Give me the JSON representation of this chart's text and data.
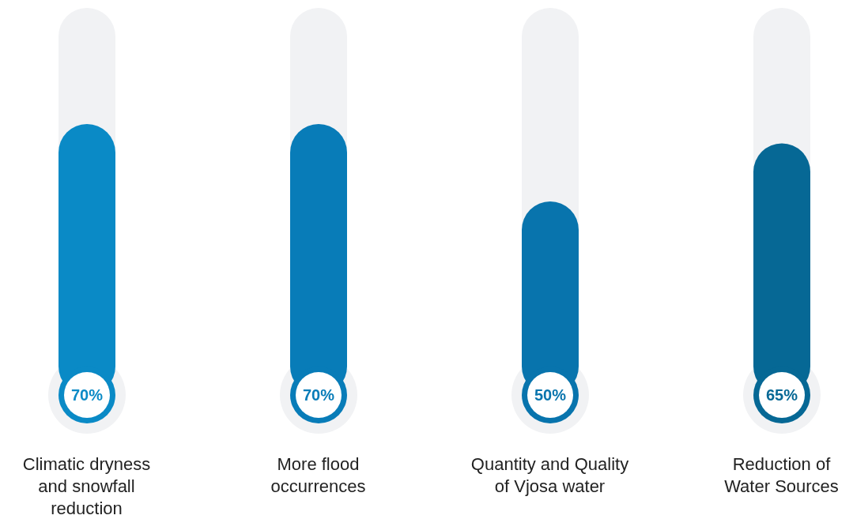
{
  "chart_data": {
    "type": "bar",
    "categories": [
      "Climatic dryness and snowfall reduction",
      "More flood occurrences",
      "Quantity and Quality of Vjosa water",
      "Reduction of Water Sources"
    ],
    "values": [
      70,
      70,
      50,
      65
    ],
    "colors": [
      "#0a8ac6",
      "#087cb8",
      "#0874ad",
      "#066895"
    ],
    "value_labels": [
      "70%",
      "70%",
      "50%",
      "65%"
    ],
    "ylim": [
      0,
      100
    ],
    "tick_labels": "x"
  }
}
